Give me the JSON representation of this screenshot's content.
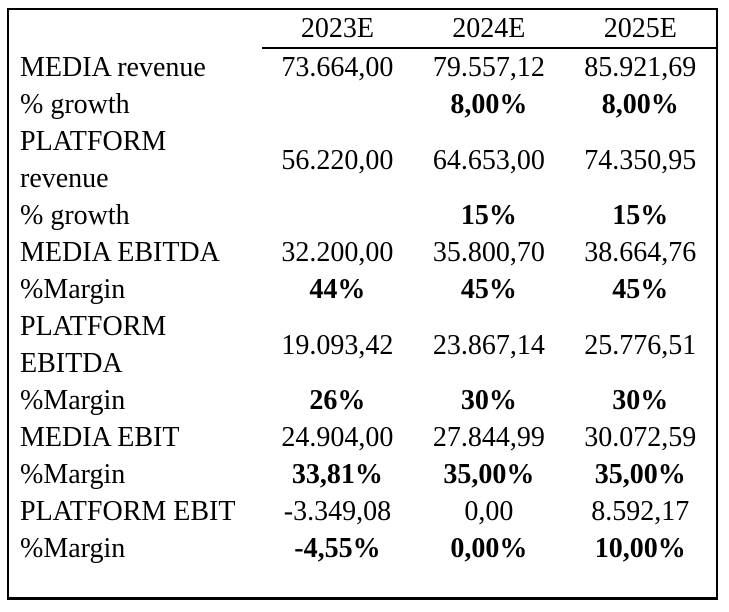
{
  "table": {
    "columns": [
      "2023E",
      "2024E",
      "2025E"
    ],
    "rows": [
      {
        "label": "MEDIA revenue",
        "values": [
          "73.664,00",
          "79.557,12",
          "85.921,69"
        ],
        "bold_values": false
      },
      {
        "label": "% growth",
        "values": [
          "",
          "8,00%",
          "8,00%"
        ],
        "bold_values": true
      },
      {
        "label": "PLATFORM revenue",
        "values": [
          "56.220,00",
          "64.653,00",
          "74.350,95"
        ],
        "bold_values": false
      },
      {
        "label": "% growth",
        "values": [
          "",
          "15%",
          "15%"
        ],
        "bold_values": true
      },
      {
        "label": "MEDIA EBITDA",
        "values": [
          "32.200,00",
          "35.800,70",
          "38.664,76"
        ],
        "bold_values": false
      },
      {
        "label": "%Margin",
        "values": [
          "44%",
          "45%",
          "45%"
        ],
        "bold_values": true
      },
      {
        "label": "PLATFORM EBITDA",
        "values": [
          "19.093,42",
          "23.867,14",
          "25.776,51"
        ],
        "bold_values": false
      },
      {
        "label": "%Margin",
        "values": [
          "26%",
          "30%",
          "30%"
        ],
        "bold_values": true
      },
      {
        "label": "MEDIA EBIT",
        "values": [
          "24.904,00",
          "27.844,99",
          "30.072,59"
        ],
        "bold_values": false
      },
      {
        "label": "%Margin",
        "values": [
          "33,81%",
          "35,00%",
          "35,00%"
        ],
        "bold_values": true
      },
      {
        "label": "PLATFORM EBIT",
        "values": [
          "-3.349,08",
          "0,00",
          "8.592,17"
        ],
        "bold_values": false
      },
      {
        "label": "%Margin",
        "values": [
          "-4,55%",
          "0,00%",
          "10,00%"
        ],
        "bold_values": true
      }
    ],
    "colors": {
      "text": "#000000",
      "border": "#000000",
      "background": "#ffffff"
    }
  }
}
